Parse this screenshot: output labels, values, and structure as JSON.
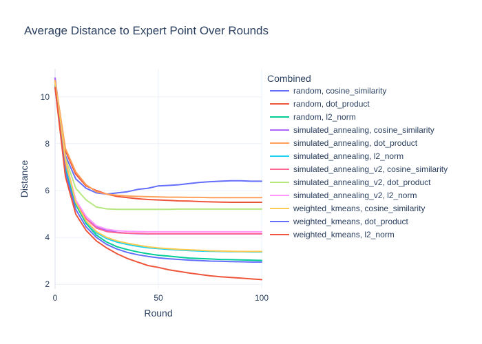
{
  "chart_data": {
    "type": "line",
    "title": "Average Distance to Expert Point Over Rounds",
    "xlabel": "Round",
    "ylabel": "Distance",
    "xlim": [
      0,
      100
    ],
    "ylim": [
      1.8,
      11.2
    ],
    "xticks": [
      0,
      50,
      100
    ],
    "yticks": [
      2,
      4,
      6,
      8,
      10
    ],
    "grid": true,
    "legend": {
      "title": "Combined",
      "placement": "right"
    },
    "x": [
      0,
      5,
      10,
      15,
      20,
      25,
      30,
      35,
      40,
      45,
      50,
      55,
      60,
      65,
      70,
      75,
      80,
      85,
      90,
      95,
      100
    ],
    "series": [
      {
        "name": "random, cosine_similarity",
        "color": "#636efa",
        "values": [
          10.8,
          7.5,
          6.5,
          6.1,
          5.9,
          5.85,
          5.9,
          5.95,
          6.05,
          6.1,
          6.2,
          6.22,
          6.25,
          6.3,
          6.35,
          6.38,
          6.4,
          6.42,
          6.42,
          6.4,
          6.4
        ]
      },
      {
        "name": "random, dot_product",
        "color": "#ef553b",
        "values": [
          10.6,
          7.7,
          6.7,
          6.2,
          6.0,
          5.85,
          5.75,
          5.7,
          5.65,
          5.62,
          5.6,
          5.58,
          5.56,
          5.55,
          5.53,
          5.52,
          5.51,
          5.5,
          5.5,
          5.5,
          5.5
        ]
      },
      {
        "name": "random, l2_norm",
        "color": "#00cc96",
        "values": [
          10.5,
          7.0,
          5.4,
          4.6,
          4.1,
          3.8,
          3.6,
          3.48,
          3.38,
          3.3,
          3.24,
          3.2,
          3.16,
          3.12,
          3.1,
          3.08,
          3.06,
          3.05,
          3.04,
          3.03,
          3.02
        ]
      },
      {
        "name": "simulated_annealing, cosine_similarity",
        "color": "#ab63fa",
        "values": [
          10.8,
          7.2,
          5.5,
          4.8,
          4.45,
          4.3,
          4.22,
          4.18,
          4.16,
          4.15,
          4.15,
          4.15,
          4.15,
          4.15,
          4.15,
          4.15,
          4.15,
          4.15,
          4.15,
          4.15,
          4.15
        ]
      },
      {
        "name": "simulated_annealing, dot_product",
        "color": "#ffa15a",
        "values": [
          10.7,
          7.8,
          6.8,
          6.25,
          5.95,
          5.85,
          5.8,
          5.77,
          5.75,
          5.74,
          5.73,
          5.72,
          5.72,
          5.71,
          5.71,
          5.7,
          5.7,
          5.7,
          5.7,
          5.7,
          5.7
        ]
      },
      {
        "name": "simulated_annealing, l2_norm",
        "color": "#19d3f3",
        "values": [
          10.5,
          7.1,
          5.5,
          4.7,
          4.2,
          3.95,
          3.8,
          3.7,
          3.62,
          3.56,
          3.52,
          3.49,
          3.46,
          3.44,
          3.42,
          3.41,
          3.4,
          3.39,
          3.39,
          3.38,
          3.38
        ]
      },
      {
        "name": "simulated_annealing_v2, cosine_similarity",
        "color": "#ff6692",
        "values": [
          10.6,
          7.2,
          5.6,
          4.8,
          4.4,
          4.25,
          4.2,
          4.18,
          4.17,
          4.16,
          4.16,
          4.16,
          4.16,
          4.16,
          4.16,
          4.16,
          4.16,
          4.16,
          4.16,
          4.16,
          4.16
        ]
      },
      {
        "name": "simulated_annealing_v2, dot_product",
        "color": "#b6e880",
        "values": [
          10.6,
          7.4,
          6.1,
          5.6,
          5.3,
          5.22,
          5.2,
          5.2,
          5.2,
          5.2,
          5.2,
          5.2,
          5.21,
          5.21,
          5.21,
          5.21,
          5.21,
          5.21,
          5.21,
          5.21,
          5.21
        ]
      },
      {
        "name": "simulated_annealing_v2, l2_norm",
        "color": "#ff97ff",
        "values": [
          10.6,
          7.3,
          5.6,
          4.9,
          4.5,
          4.35,
          4.29,
          4.26,
          4.25,
          4.24,
          4.24,
          4.24,
          4.24,
          4.24,
          4.24,
          4.24,
          4.24,
          4.24,
          4.24,
          4.24,
          4.24
        ]
      },
      {
        "name": "weighted_kmeans, cosine_similarity",
        "color": "#fecb52",
        "values": [
          10.6,
          7.3,
          5.5,
          4.7,
          4.25,
          4.0,
          3.85,
          3.75,
          3.67,
          3.6,
          3.55,
          3.52,
          3.49,
          3.47,
          3.45,
          3.43,
          3.42,
          3.41,
          3.4,
          3.4,
          3.4
        ]
      },
      {
        "name": "weighted_kmeans, dot_product",
        "color": "#636efa",
        "values": [
          10.4,
          6.8,
          5.2,
          4.45,
          4.0,
          3.7,
          3.5,
          3.36,
          3.26,
          3.19,
          3.13,
          3.09,
          3.06,
          3.03,
          3.01,
          2.99,
          2.98,
          2.97,
          2.96,
          2.95,
          2.95
        ]
      },
      {
        "name": "weighted_kmeans, l2_norm",
        "color": "#ef553b",
        "values": [
          10.4,
          6.6,
          5.0,
          4.3,
          3.85,
          3.55,
          3.3,
          3.1,
          2.95,
          2.8,
          2.72,
          2.62,
          2.55,
          2.48,
          2.42,
          2.36,
          2.32,
          2.29,
          2.26,
          2.23,
          2.2
        ]
      }
    ]
  }
}
